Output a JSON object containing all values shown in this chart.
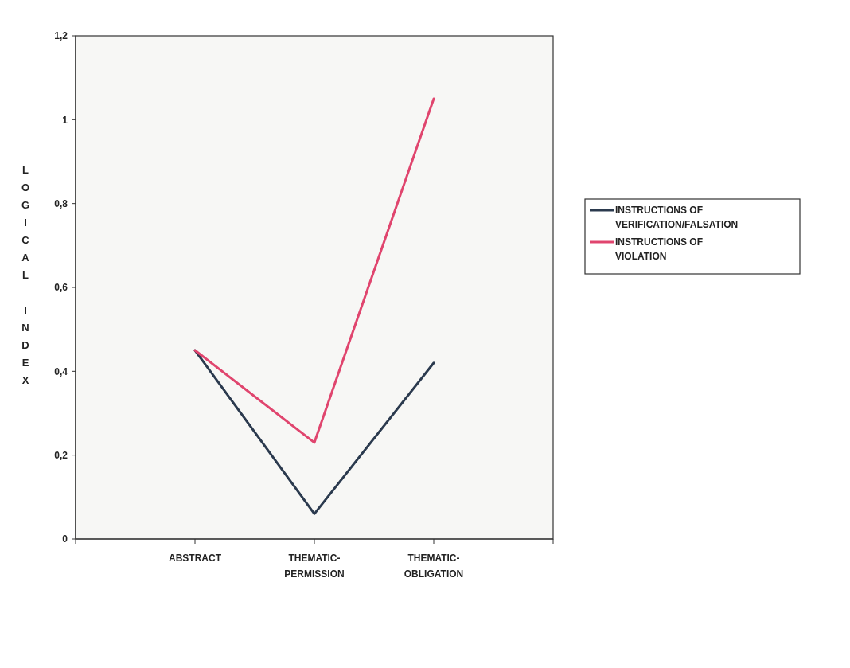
{
  "chart_data": {
    "type": "line",
    "ylabel": "LOGICAL INDEX",
    "categories": [
      "ABSTRACT",
      "THEMATIC-PERMISSION",
      "THEMATIC-OBLIGATION"
    ],
    "series": [
      {
        "name": "INSTRUCTIONS OF VERIFICATION/FALSATION",
        "color": "#2b3a4e",
        "values": [
          0.45,
          0.06,
          0.42
        ]
      },
      {
        "name": "INSTRUCTIONS OF VIOLATION",
        "color": "#e0456e",
        "values": [
          0.45,
          0.23,
          1.05
        ]
      }
    ],
    "ylim": [
      0,
      1.2
    ],
    "yticks": [
      0,
      {
        "value": 0.2,
        "label": "0,2"
      },
      {
        "value": 0.4,
        "label": "0,4"
      },
      {
        "value": 0.6,
        "label": "0,6"
      },
      {
        "value": 0.8,
        "label": "0,8"
      },
      1,
      {
        "value": 1.2,
        "label": "1,2"
      }
    ],
    "grid": false,
    "legend": "right",
    "marker": "none",
    "line_style": "solid"
  }
}
